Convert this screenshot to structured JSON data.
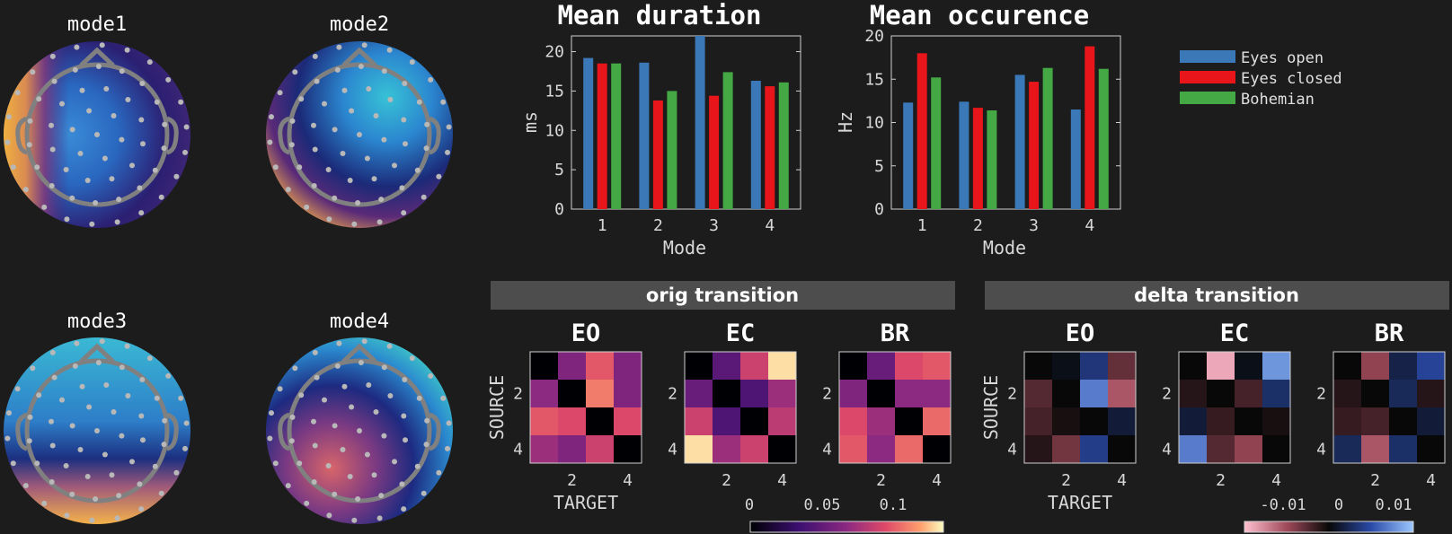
{
  "topomaps": {
    "titles": [
      "mode1",
      "mode2",
      "mode3",
      "mode4"
    ]
  },
  "chart_data": [
    {
      "type": "bar",
      "title": "Mean duration",
      "xlabel": "Mode",
      "ylabel": "ms",
      "categories": [
        "1",
        "2",
        "3",
        "4"
      ],
      "ylim": [
        0,
        22
      ],
      "yticks": [
        0,
        5,
        10,
        15,
        20
      ],
      "series": [
        {
          "name": "Eyes open",
          "values": [
            19.2,
            18.6,
            22.3,
            16.3
          ]
        },
        {
          "name": "Eyes closed",
          "values": [
            18.5,
            13.8,
            14.4,
            15.6
          ]
        },
        {
          "name": "Bohemian",
          "values": [
            18.5,
            15.0,
            17.4,
            16.1
          ]
        }
      ]
    },
    {
      "type": "bar",
      "title": "Mean occurence",
      "xlabel": "Mode",
      "ylabel": "Hz",
      "categories": [
        "1",
        "2",
        "3",
        "4"
      ],
      "ylim": [
        0,
        20
      ],
      "yticks": [
        0,
        5,
        10,
        15,
        20
      ],
      "series": [
        {
          "name": "Eyes open",
          "values": [
            12.3,
            12.4,
            15.5,
            11.5
          ]
        },
        {
          "name": "Eyes closed",
          "values": [
            18.0,
            11.7,
            14.7,
            18.8
          ]
        },
        {
          "name": "Bohemian",
          "values": [
            15.2,
            11.4,
            16.3,
            16.2
          ]
        }
      ]
    },
    {
      "type": "heatmap",
      "title": "orig transition",
      "xlabel": "TARGET",
      "ylabel": "SOURCE",
      "ticks": [
        "2",
        "4"
      ],
      "colorbar_ticks": [
        "0",
        "0.05",
        "0.1"
      ],
      "range": [
        0,
        0.13
      ],
      "panels": [
        {
          "name": "EO",
          "matrix": [
            [
              0,
              0.06,
              0.095,
              0.06
            ],
            [
              0.065,
              0,
              0.105,
              0.06
            ],
            [
              0.095,
              0.09,
              0,
              0.09
            ],
            [
              0.07,
              0.06,
              0.085,
              0
            ]
          ]
        },
        {
          "name": "EC",
          "matrix": [
            [
              0,
              0.045,
              0.085,
              0.125
            ],
            [
              0.05,
              0,
              0.04,
              0.07
            ],
            [
              0.085,
              0.04,
              0,
              0.08
            ],
            [
              0.125,
              0.07,
              0.085,
              0
            ]
          ]
        },
        {
          "name": "BR",
          "matrix": [
            [
              0,
              0.05,
              0.09,
              0.095
            ],
            [
              0.06,
              0,
              0.065,
              0.065
            ],
            [
              0.09,
              0.07,
              0,
              0.1
            ],
            [
              0.095,
              0.065,
              0.1,
              0
            ]
          ]
        }
      ]
    },
    {
      "type": "heatmap",
      "title": "delta transition",
      "xlabel": "TARGET",
      "ylabel": "SOURCE",
      "ticks": [
        "2",
        "4"
      ],
      "colorbar_ticks": [
        "-0.01",
        "0",
        "0.01"
      ],
      "range": [
        -0.02,
        0.02
      ],
      "panels": [
        {
          "name": "EO",
          "matrix": [
            [
              0,
              0.001,
              0.007,
              -0.006
            ],
            [
              -0.005,
              0,
              0.014,
              -0.011
            ],
            [
              -0.004,
              -0.001,
              0,
              0.003
            ],
            [
              -0.002,
              -0.007,
              0.008,
              0
            ]
          ]
        },
        {
          "name": "EC",
          "matrix": [
            [
              0,
              -0.018,
              0.001,
              0.016
            ],
            [
              -0.002,
              0,
              -0.004,
              0.006
            ],
            [
              0.003,
              -0.003,
              0,
              -0.001
            ],
            [
              0.014,
              -0.005,
              -0.009,
              0
            ]
          ]
        },
        {
          "name": "BR",
          "matrix": [
            [
              0,
              -0.009,
              0.004,
              0.009
            ],
            [
              -0.002,
              0,
              0.005,
              -0.002
            ],
            [
              -0.003,
              -0.004,
              0,
              0.003
            ],
            [
              0.005,
              -0.011,
              0.006,
              0
            ]
          ]
        }
      ]
    }
  ],
  "colors": {
    "eyes_open": "#3a78b8",
    "eyes_closed": "#e8161a",
    "bohemian": "#44a845",
    "background": "#1c1c1c",
    "header_bar": "#4d4d4d"
  }
}
